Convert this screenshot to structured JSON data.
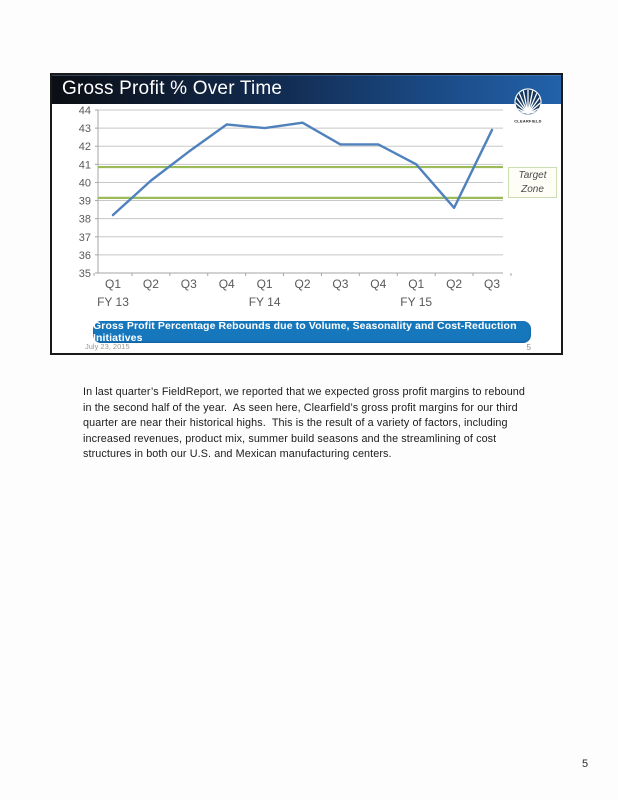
{
  "page": {
    "number": "5"
  },
  "slide": {
    "title": "Gross Profit % Over Time",
    "logo": {
      "label": "CLEARFIELD",
      "circle_color": "#16375f"
    },
    "banner": {
      "text": "Gross Profit Percentage Rebounds due to Volume, Seasonality and Cost-Reduction Initiatives",
      "color": "#1777bc"
    },
    "footer": {
      "date": "July 23, 2015",
      "slide_number": "5"
    }
  },
  "chart_data": {
    "type": "line",
    "title": "Gross Profit % Over Time",
    "categories": [
      "Q1",
      "Q2",
      "Q3",
      "Q4",
      "Q1",
      "Q2",
      "Q3",
      "Q4",
      "Q1",
      "Q2",
      "Q3"
    ],
    "fiscal_year_labels": [
      {
        "label": "FY 13",
        "index": 0
      },
      {
        "label": "FY 14",
        "index": 4
      },
      {
        "label": "FY 15",
        "index": 8
      }
    ],
    "series": [
      {
        "name": "Gross Profit %",
        "color": "#4f81bd",
        "values": [
          38.2,
          40.1,
          41.7,
          43.2,
          43.0,
          43.3,
          42.1,
          42.1,
          41.0,
          38.6,
          42.9
        ]
      }
    ],
    "target_zone": {
      "low": 39.15,
      "high": 40.85,
      "color": "#9bbb59",
      "label": "Target Zone"
    },
    "ylim": [
      35,
      44
    ],
    "ytick_step": 1,
    "grid": true,
    "gridline_color": "#c8c8c8",
    "axis_color": "#a6a6a6",
    "legend": "none"
  },
  "notes": {
    "lines": [
      "In last quarter’s FieldReport, we reported that we expected gross profit margins to rebound",
      "in the second half of the year.  As seen here, Clearfield’s gross profit margins for our third",
      "quarter are near their historical highs.  This is the result of a variety of factors, including",
      "increased revenues, product mix, summer build seasons and the streamlining of cost",
      "structures in both our U.S. and Mexican manufacturing centers."
    ]
  }
}
